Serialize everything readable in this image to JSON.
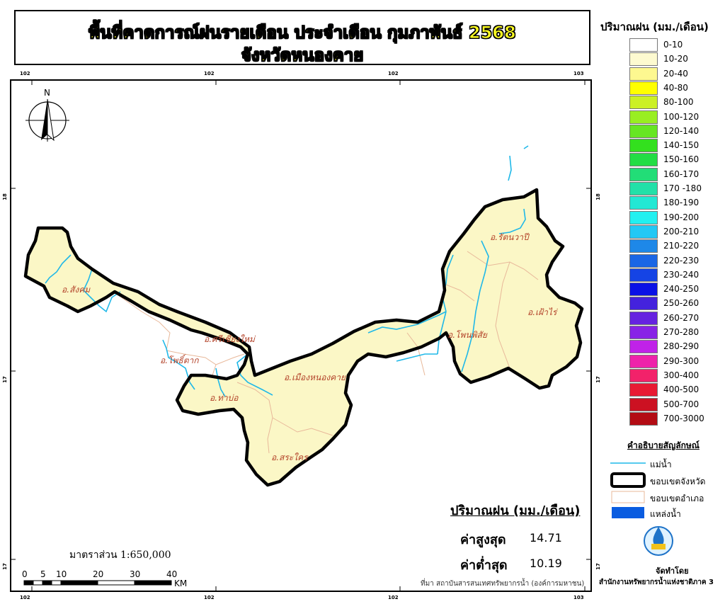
{
  "title": {
    "line1": "พื้นที่คาดการณ์ฝนรายเดือน ประจำเดือน กุมภาพันธ์ 2568",
    "line2": "จังหวัดหนองคาย"
  },
  "grid_ticks": {
    "top": [
      "102",
      "102",
      "102",
      "103"
    ],
    "bottom": [
      "102",
      "102",
      "102",
      "103"
    ],
    "left": [
      "18",
      "17",
      "17"
    ],
    "right": [
      "18",
      "17",
      "17"
    ]
  },
  "north_arrow_label": "N",
  "districts": [
    {
      "name": "อ.สังคม"
    },
    {
      "name": "อ.ศรีเชียงใหม่"
    },
    {
      "name": "อ.โพธิ์ตาก"
    },
    {
      "name": "อ.ท่าบ่อ"
    },
    {
      "name": "อ.เมืองหนองคาย"
    },
    {
      "name": "อ.สระใคร"
    },
    {
      "name": "อ.โพนพิสัย"
    },
    {
      "name": "อ.รัตนวาปี"
    },
    {
      "name": "อ.เฝ้าไร่"
    }
  ],
  "colors": {
    "province_fill": "#fbf7c6",
    "river": "#1fb8e8",
    "district_boundary": "#e8b89a",
    "province_boundary": "#000000",
    "waterbody": "#0a5ce0"
  },
  "legend": {
    "title": "ปริมาณฝน (มม./เดือน)",
    "classes": [
      {
        "label": "0-10",
        "color": "#ffffff"
      },
      {
        "label": "10-20",
        "color": "#fdfad0"
      },
      {
        "label": "20-40",
        "color": "#fdf890"
      },
      {
        "label": "40-80",
        "color": "#ffff00"
      },
      {
        "label": "80-100",
        "color": "#ccf025"
      },
      {
        "label": "100-120",
        "color": "#99ee22"
      },
      {
        "label": "120-140",
        "color": "#66e622"
      },
      {
        "label": "140-150",
        "color": "#33e01e"
      },
      {
        "label": "150-160",
        "color": "#22dd44"
      },
      {
        "label": "160-170",
        "color": "#22dd77"
      },
      {
        "label": "170 -180",
        "color": "#22e0a8"
      },
      {
        "label": "180-190",
        "color": "#22e8d4"
      },
      {
        "label": "190-200",
        "color": "#22f0f0"
      },
      {
        "label": "200-210",
        "color": "#22c8f5"
      },
      {
        "label": "210-220",
        "color": "#1e88e8"
      },
      {
        "label": "220-230",
        "color": "#1a66e5"
      },
      {
        "label": "230-240",
        "color": "#1544e5"
      },
      {
        "label": "240-250",
        "color": "#0a11e6"
      },
      {
        "label": "250-260",
        "color": "#4422dd"
      },
      {
        "label": "260-270",
        "color": "#6622e0"
      },
      {
        "label": "270-280",
        "color": "#8822e6"
      },
      {
        "label": "280-290",
        "color": "#c022e8"
      },
      {
        "label": "290-300",
        "color": "#ee22aa"
      },
      {
        "label": "300-400",
        "color": "#f2226a"
      },
      {
        "label": "400-500",
        "color": "#e81a33"
      },
      {
        "label": "500-700",
        "color": "#cc1122"
      },
      {
        "label": "700-3000",
        "color": "#b30c14"
      }
    ]
  },
  "symbols": {
    "title": "คำอธิบายสัญลักษณ์",
    "items": [
      {
        "label": "แม่น้ำ"
      },
      {
        "label": "ขอบเขตจังหวัด"
      },
      {
        "label": "ขอบเขตอำเภอ"
      },
      {
        "label": "แหล่งน้ำ"
      }
    ]
  },
  "stats": {
    "title": "ปริมาณฝน (มม./เดือน)",
    "max_label": "ค่าสูงสุด",
    "max_value": "14.71",
    "min_label": "ค่าต่ำสุด",
    "min_value": "10.19"
  },
  "scale": {
    "text": "มาตราส่วน 1:650,000",
    "ticks": [
      "0",
      "5",
      "10",
      "20",
      "30",
      "40"
    ],
    "unit": "KM"
  },
  "source": "ที่มา  สถาบันสารสนเทศทรัพยากรน้ำ (องค์การมหาชน)",
  "credit": {
    "label": "จัดทำโดย",
    "org": "สำนักงานทรัพยากรน้ำแห่งชาติภาค 3"
  }
}
